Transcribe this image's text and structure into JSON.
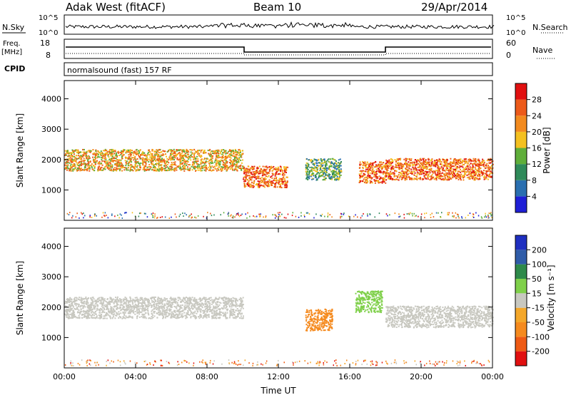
{
  "header": {
    "station": "Adak West (fitACF)",
    "beam": "Beam 10",
    "date": "29/Apr/2014"
  },
  "top_panels": {
    "nsky": {
      "label": "N.Sky",
      "ticks": [
        "10^5",
        "10^0"
      ]
    },
    "nsearch": {
      "label": "N.Search",
      "ticks": [
        "10^5",
        "10^0"
      ]
    },
    "freq": {
      "label_line1": "Freq.",
      "label_line2": "[MHz]",
      "ticks": [
        "18",
        "8"
      ]
    },
    "nave": {
      "label": "Nave",
      "ticks": [
        "60",
        "0"
      ]
    },
    "cpid": {
      "label": "CPID",
      "value": "normalsound (fast) 157 RF"
    }
  },
  "colors": {
    "power_scale": [
      "#1f1fd6",
      "#2a6fb0",
      "#2f8a5a",
      "#5fae3a",
      "#f4c020",
      "#f28a1e",
      "#ec5a1a",
      "#e11010"
    ],
    "velocity_scale": [
      "#e11010",
      "#ee5a14",
      "#f58a1e",
      "#f4a72a",
      "#c8c8c0",
      "#7fd04a",
      "#2e8a4a",
      "#2f5ca8",
      "#1f2fc0"
    ]
  },
  "chart_data": [
    {
      "type": "heatmap",
      "panel": "power",
      "ylabel": "Slant Range [km]",
      "ylim": [
        0,
        4600
      ],
      "yticks": [
        "4000",
        "3000",
        "2000",
        "1000"
      ],
      "xticks": [
        "00:00",
        "04:00",
        "08:00",
        "12:00",
        "16:00",
        "20:00",
        "00:00"
      ],
      "colorbar": {
        "label": "Power [dB]",
        "ticks": [
          "28",
          "24",
          "20",
          "16",
          "12",
          "8",
          "4"
        ]
      },
      "bands": [
        {
          "start_ut": 0,
          "end_ut": 10,
          "range_km": 2000,
          "power_db": 24
        },
        {
          "start_ut": 10,
          "end_ut": 12.5,
          "range_km": 1450,
          "power_db": 28
        },
        {
          "start_ut": 13.5,
          "end_ut": 15.5,
          "range_km": 1700,
          "power_db": 16
        },
        {
          "start_ut": 16.5,
          "end_ut": 18,
          "range_km": 1600,
          "power_db": 28
        },
        {
          "start_ut": 18,
          "end_ut": 24,
          "range_km": 1700,
          "power_db": 28
        }
      ]
    },
    {
      "type": "heatmap",
      "panel": "velocity",
      "ylabel": "Slant Range [km]",
      "ylim": [
        0,
        4600
      ],
      "yticks": [
        "4000",
        "3000",
        "2000",
        "1000"
      ],
      "xticks": [
        "00:00",
        "04:00",
        "08:00",
        "12:00",
        "16:00",
        "20:00",
        "00:00"
      ],
      "xlabel": "Time UT",
      "colorbar": {
        "label": "Velocity [m s⁻¹]",
        "ticks": [
          "200",
          "100",
          "50",
          "15",
          "-15",
          "-50",
          "-100",
          "-200"
        ]
      },
      "bands": [
        {
          "start_ut": 0,
          "end_ut": 10,
          "range_km": 2000,
          "velocity": 0
        },
        {
          "start_ut": 13.5,
          "end_ut": 15,
          "range_km": 1600,
          "velocity": -60
        },
        {
          "start_ut": 16.3,
          "end_ut": 17.8,
          "range_km": 2200,
          "velocity": 40
        },
        {
          "start_ut": 18,
          "end_ut": 24,
          "range_km": 1700,
          "velocity": 0
        }
      ]
    }
  ]
}
